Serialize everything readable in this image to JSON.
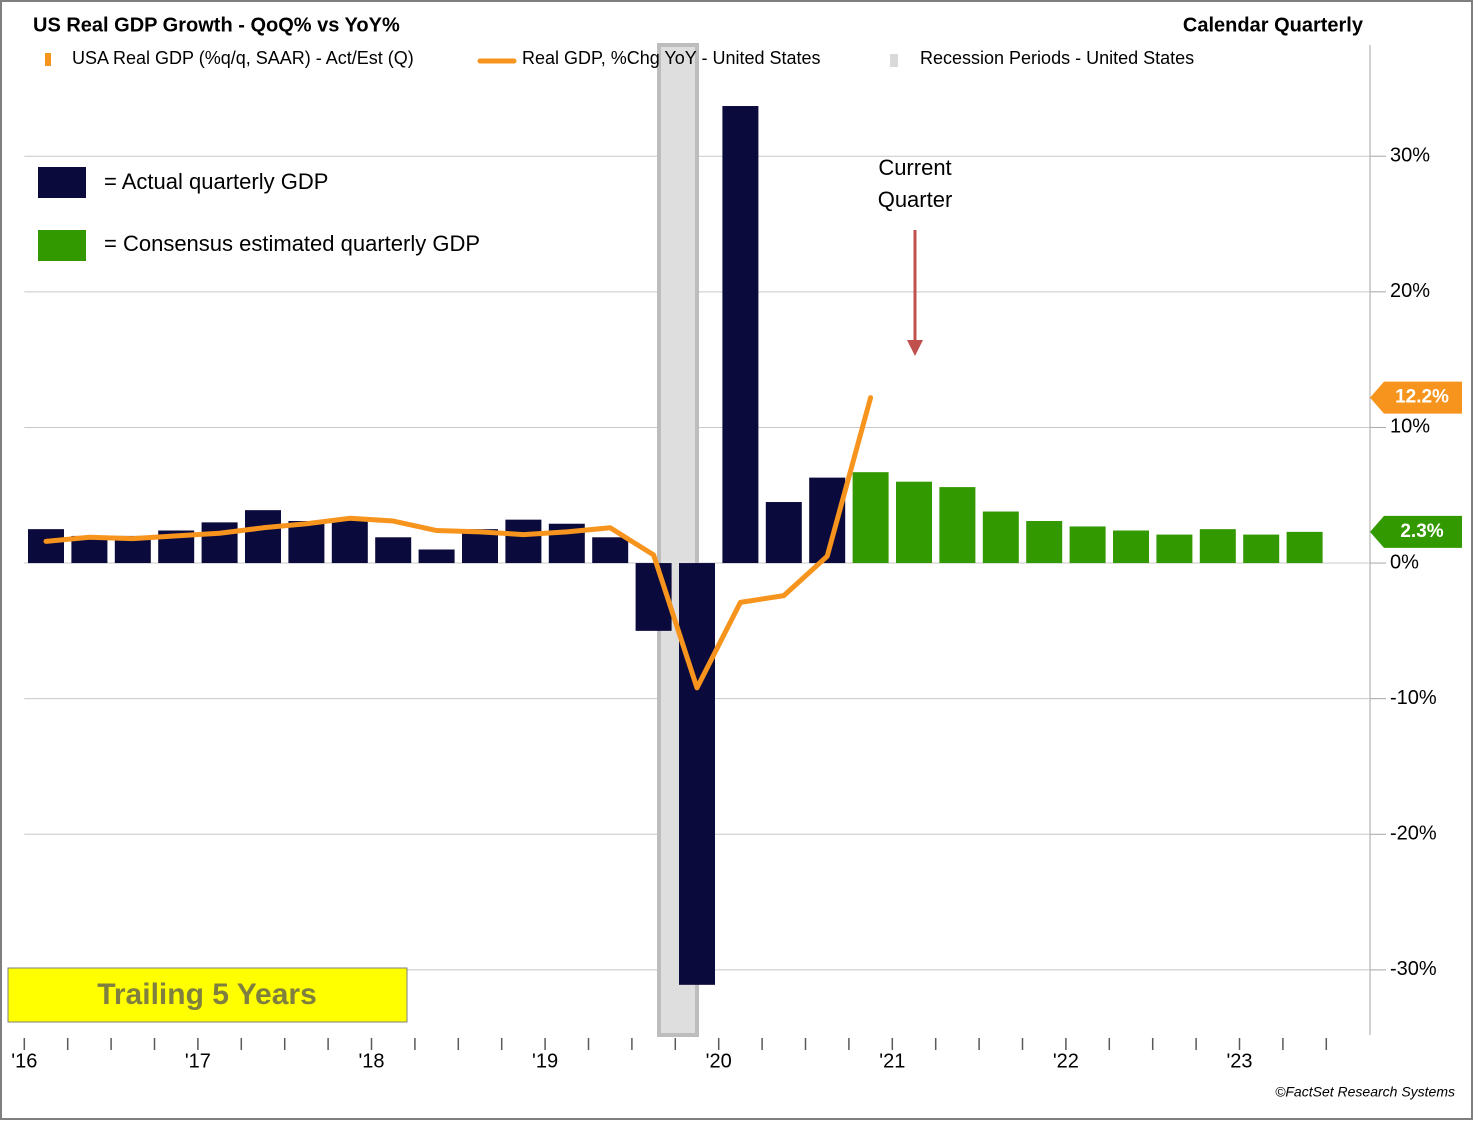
{
  "chart_data": {
    "type": "bar",
    "title": "US Real GDP Growth - QoQ% vs YoY%",
    "frequency_label": "Calendar Quarterly",
    "categories": [
      "'16",
      null,
      null,
      null,
      "'17",
      null,
      null,
      null,
      "'18",
      null,
      null,
      null,
      "'19",
      null,
      null,
      null,
      "'20",
      null,
      null,
      null,
      "'21",
      null,
      null,
      null,
      "'22",
      null,
      null,
      null,
      "'23",
      null
    ],
    "series": [
      {
        "name": "USA Real GDP (%q/q, SAAR) - Act/Est (Q)",
        "type": "bar",
        "color": "#f7941d",
        "colors": [
          "#0b0a3d",
          "#0b0a3d",
          "#0b0a3d",
          "#0b0a3d",
          "#0b0a3d",
          "#0b0a3d",
          "#0b0a3d",
          "#0b0a3d",
          "#0b0a3d",
          "#0b0a3d",
          "#0b0a3d",
          "#0b0a3d",
          "#0b0a3d",
          "#0b0a3d",
          "#0b0a3d",
          "#0b0a3d",
          "#0b0a3d",
          "#0b0a3d",
          "#0b0a3d",
          "#339900",
          "#339900",
          "#339900",
          "#339900",
          "#339900",
          "#339900",
          "#339900",
          "#339900",
          "#339900",
          "#339900",
          "#339900"
        ],
        "values": [
          2.5,
          2.0,
          2.0,
          2.4,
          3.0,
          3.9,
          3.1,
          3.2,
          1.9,
          1.0,
          2.5,
          3.2,
          2.9,
          1.9,
          -5.0,
          -31.1,
          33.7,
          4.5,
          6.3,
          6.7,
          6.0,
          5.6,
          3.8,
          3.1,
          2.7,
          2.4,
          2.1,
          2.5,
          2.1,
          2.3
        ],
        "end_label": "2.3%"
      },
      {
        "name": "Real GDP, %Chg YoY - United States",
        "type": "line",
        "color": "#f7941d",
        "values": [
          1.6,
          1.9,
          1.8,
          2.0,
          2.2,
          2.6,
          2.9,
          3.3,
          3.1,
          2.4,
          2.3,
          2.1,
          2.3,
          2.6,
          0.6,
          -9.2,
          -2.9,
          -2.4,
          0.5,
          12.2,
          null,
          null,
          null,
          null,
          null,
          null,
          null,
          null,
          null,
          null
        ],
        "end_label": "12.2%"
      }
    ],
    "recession": {
      "name": "Recession Periods - United States",
      "color": "#d9d9d9"
    },
    "ylim": [
      -34.8,
      38.2
    ],
    "yticks": [
      {
        "value": -30,
        "label": "-30%"
      },
      {
        "value": -20,
        "label": "-20%"
      },
      {
        "value": -10,
        "label": "-10%"
      },
      {
        "value": 0,
        "label": "0%"
      },
      {
        "value": 10,
        "label": "10%"
      },
      {
        "value": 20,
        "label": "20%"
      },
      {
        "value": 30,
        "label": "30%"
      }
    ],
    "grid": true,
    "annotations": {
      "current_quarter": [
        "Current",
        "Quarter"
      ],
      "actual_key": "= Actual quarterly GDP",
      "estimate_key": "= Consensus estimated quarterly GDP",
      "period": "Trailing 5 Years"
    },
    "source": "©FactSet Research Systems"
  }
}
